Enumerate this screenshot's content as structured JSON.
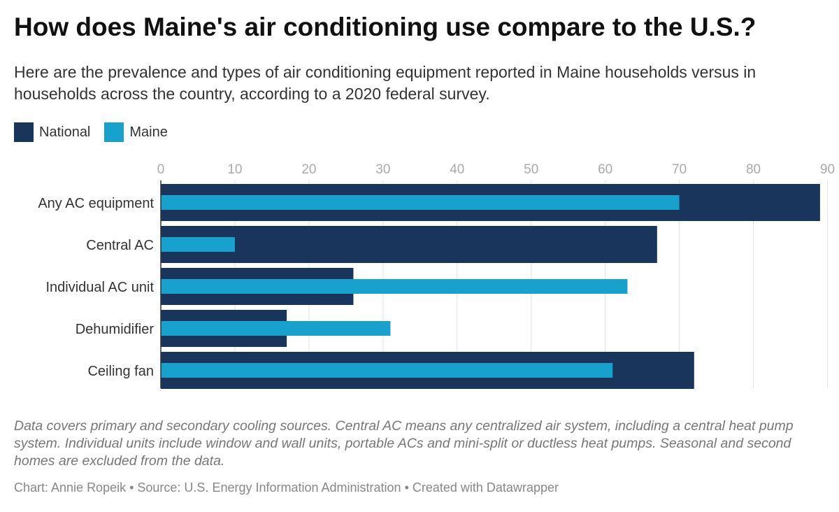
{
  "title": "How does Maine's air conditioning use compare to the U.S.?",
  "subtitle": "Here are the prevalence and types of air conditioning equipment reported in Maine households versus in households across the country, according to a 2020 federal survey.",
  "note": "Data covers primary and secondary cooling sources. Central AC means any centralized air system, including a central heat pump system. Individual units include window and wall units, portable ACs and mini-split or ductless heat pumps. Seasonal and second homes are excluded from the data.",
  "credit": "Chart: Annie Ropeik • Source: U.S. Energy Information Administration • Created with Datawrapper",
  "chart_data": {
    "type": "bar",
    "orientation": "horizontal",
    "categories": [
      "Any AC equipment",
      "Central AC",
      "Individual AC unit",
      "Dehumidifier",
      "Ceiling fan"
    ],
    "series": [
      {
        "name": "National",
        "color": "#1a355c",
        "values": [
          89,
          67,
          26,
          17,
          72
        ]
      },
      {
        "name": "Maine",
        "color": "#18a1cd",
        "values": [
          70,
          10,
          63,
          31,
          61
        ]
      }
    ],
    "xlim": [
      0,
      90
    ],
    "ticks": [
      0,
      10,
      20,
      30,
      40,
      50,
      60,
      70,
      80,
      90
    ],
    "grid": true,
    "legend": "top-left"
  }
}
